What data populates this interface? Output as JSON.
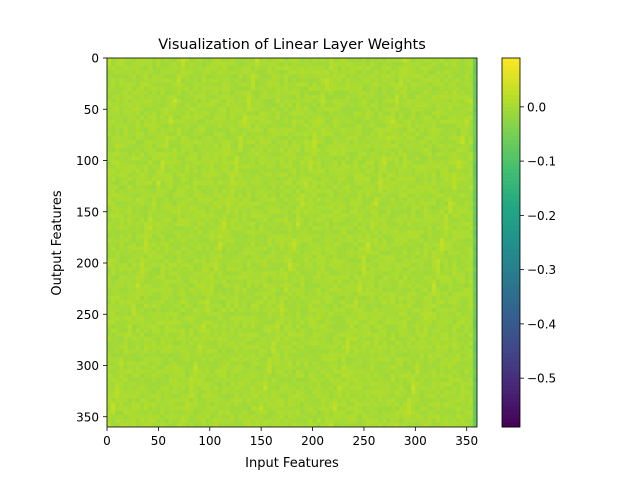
{
  "chart_data": {
    "type": "heatmap",
    "title": "Visualization of Linear Layer Weights",
    "xlabel": "Input Features",
    "ylabel": "Output Features",
    "n_rows": 360,
    "n_cols": 360,
    "xlim": [
      0,
      360
    ],
    "ylim": [
      360,
      0
    ],
    "x_ticks": [
      0,
      50,
      100,
      150,
      200,
      250,
      300,
      350
    ],
    "y_ticks": [
      0,
      50,
      100,
      150,
      200,
      250,
      300,
      350
    ],
    "colormap": "viridis",
    "colorbar": {
      "min": -0.59,
      "max": 0.09,
      "ticks": [
        0.0,
        -0.1,
        -0.2,
        -0.3,
        -0.4,
        -0.5
      ],
      "tick_labels": [
        "0.0",
        "−0.1",
        "−0.2",
        "−0.3",
        "−0.4",
        "−0.5"
      ]
    },
    "base_value": 0.0,
    "diagonal_stripes": {
      "slope_cols_per_row": -0.2,
      "spacing_cols": 72,
      "amplitude": 0.02
    },
    "right_edge_band": {
      "cols": [
        353,
        360
      ],
      "value_range": [
        -0.12,
        -0.02
      ]
    }
  },
  "colors": {
    "background": "#ffffff",
    "axis": "#000000"
  }
}
